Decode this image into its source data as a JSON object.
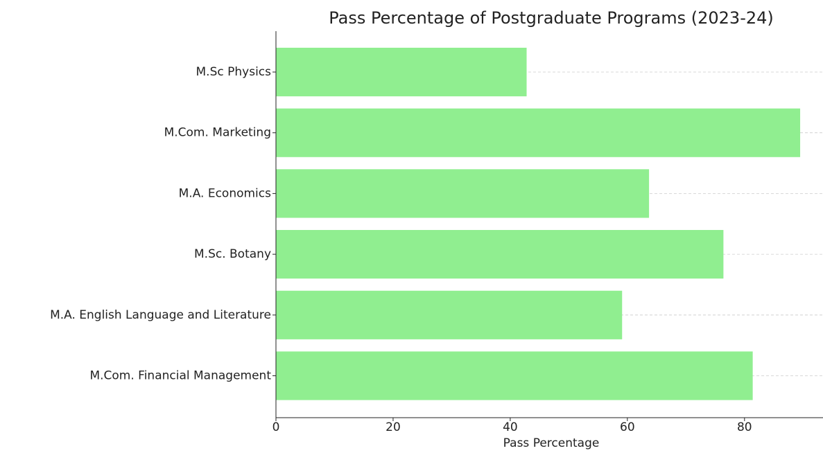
{
  "chart_data": {
    "type": "barh",
    "title": "Pass Percentage of Postgraduate Programs (2023-24)",
    "xlabel": "Pass Percentage",
    "categories": [
      "M.Sc Physics",
      "M.Com. Marketing",
      "M.A. Economics",
      "M.Sc. Botany",
      "M.A. English Language and Literature",
      "M.Com. Financial Management"
    ],
    "values": [
      42.8,
      89.5,
      63.7,
      76.4,
      59.1,
      81.4
    ],
    "color": "#90ee90",
    "xlim": [
      0,
      93.4
    ],
    "xticks": [
      0,
      20,
      40,
      60,
      80
    ],
    "grid": true
  }
}
